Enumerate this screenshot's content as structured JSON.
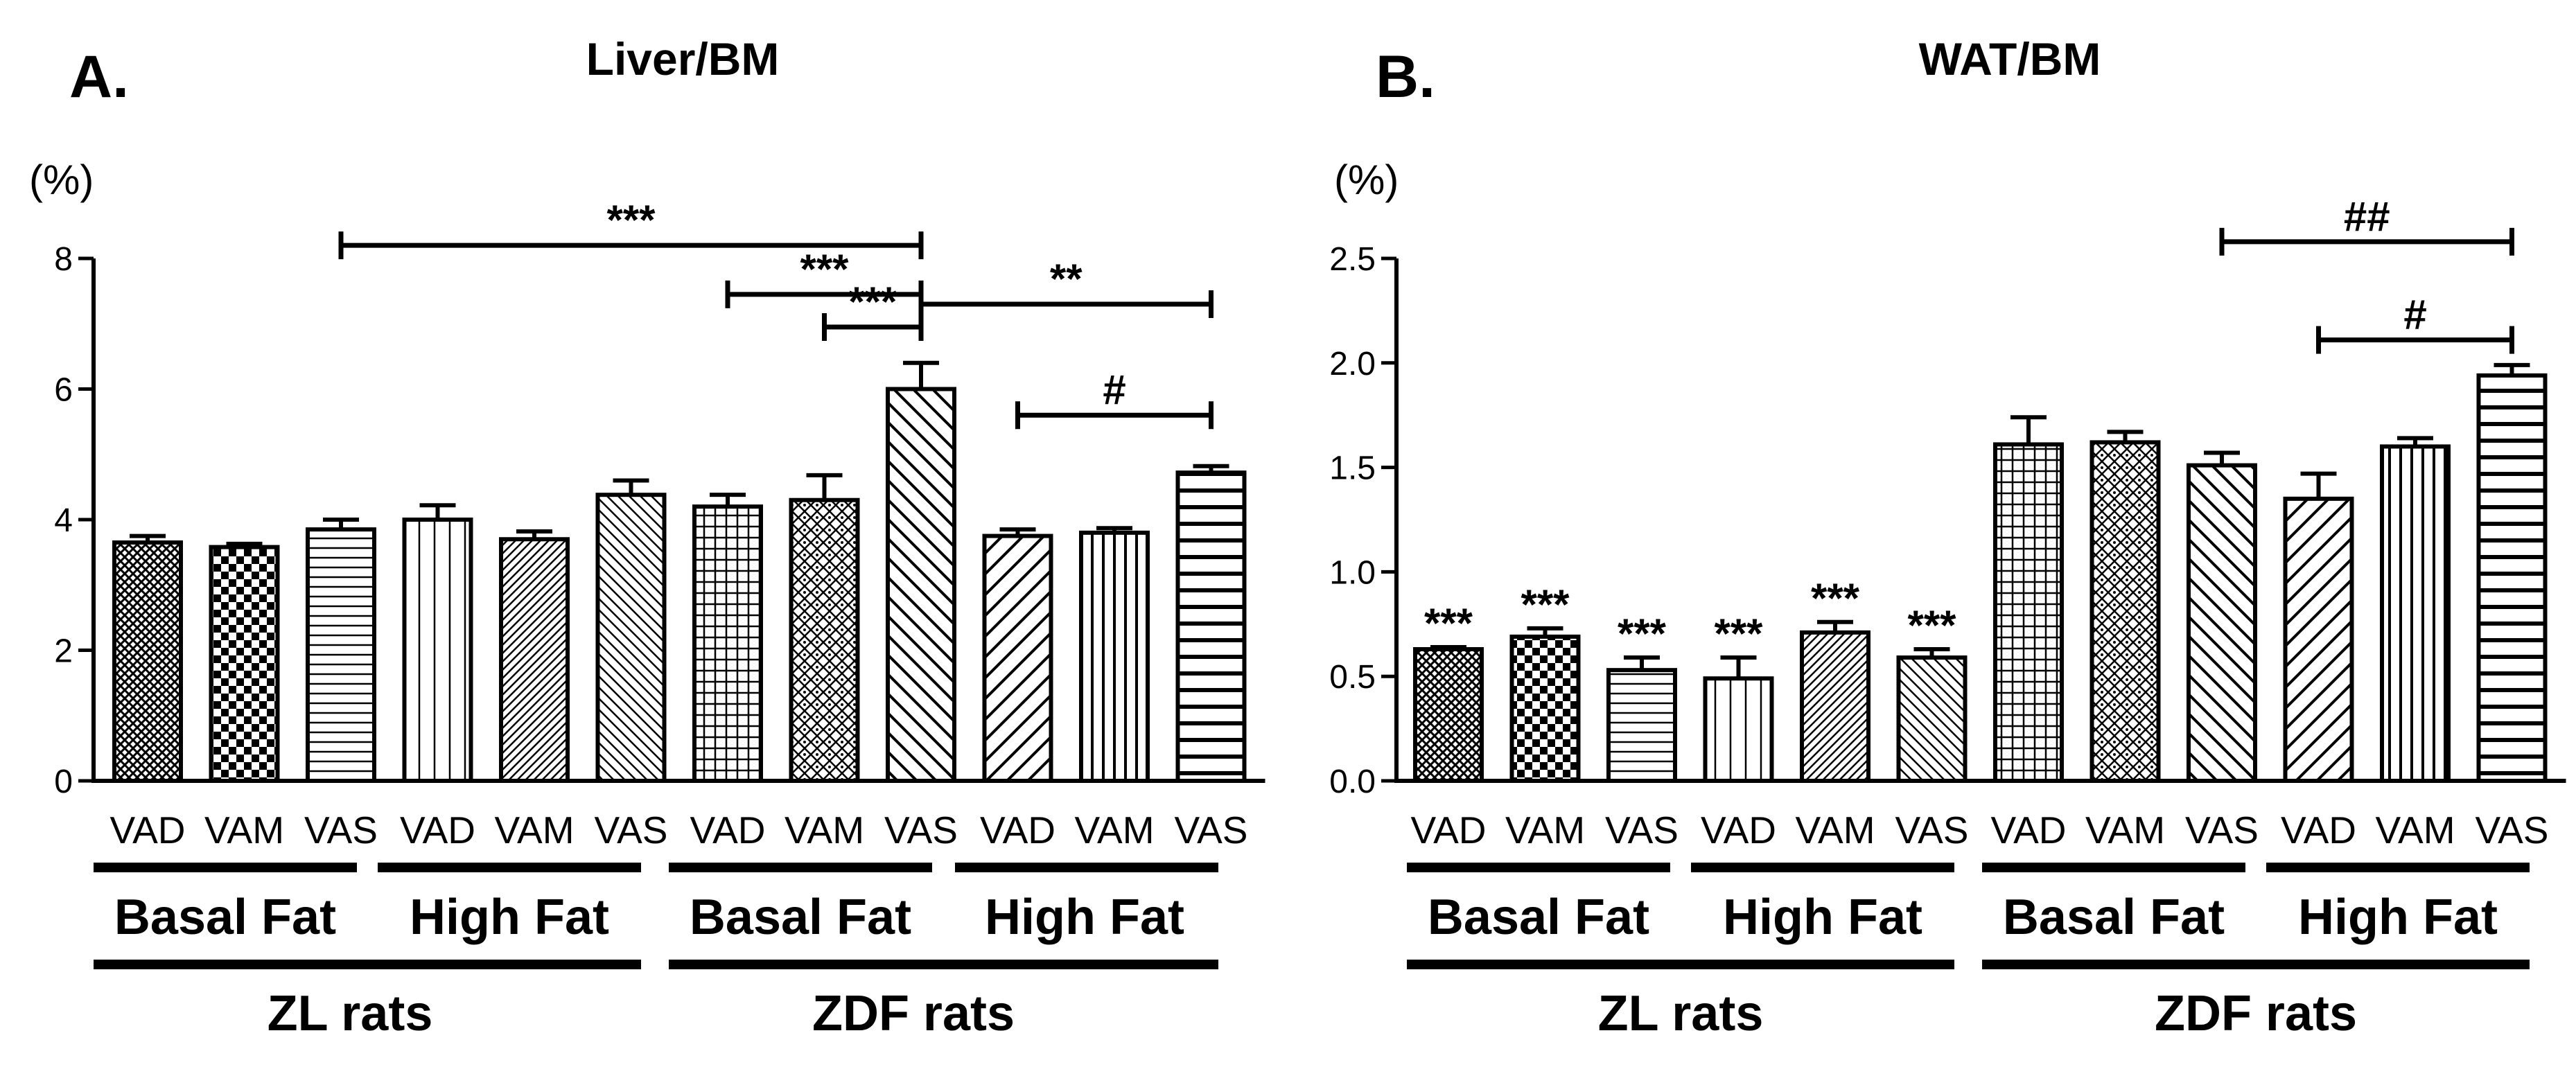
{
  "colors": {
    "ink": "#000000",
    "paper": "#ffffff"
  },
  "chart_data": [
    {
      "type": "bar",
      "panel_label": "A.",
      "title": "Liver/BM",
      "ylabel": "(%)",
      "ylim": [
        0,
        8
      ],
      "yticks": [
        0,
        2,
        4,
        6,
        8
      ],
      "ytick_labels": [
        "0",
        "2",
        "4",
        "6",
        "8"
      ],
      "categories": [
        "VAD",
        "VAM",
        "VAS",
        "VAD",
        "VAM",
        "VAS",
        "VAD",
        "VAM",
        "VAS",
        "VAD",
        "VAM",
        "VAS"
      ],
      "values": [
        3.65,
        3.58,
        3.85,
        4.0,
        3.7,
        4.38,
        4.2,
        4.3,
        6.0,
        3.75,
        3.8,
        4.72
      ],
      "errors": [
        0.1,
        0.05,
        0.15,
        0.22,
        0.12,
        0.22,
        0.18,
        0.38,
        0.4,
        0.1,
        0.07,
        0.1
      ],
      "patterns": [
        "crosshatch",
        "checker",
        "hlines",
        "vlines",
        "diag-fine",
        "diag-back",
        "grid",
        "diamond",
        "diag-back-wide",
        "diag-wide",
        "vlines-wide",
        "hlines-wide"
      ],
      "diet_groups": [
        "Basal Fat",
        "High Fat",
        "Basal Fat",
        "High Fat"
      ],
      "rat_groups": [
        "ZL rats",
        "ZDF rats"
      ],
      "brackets": [
        {
          "from": 2,
          "to": 8,
          "y": 8.2,
          "label": "***"
        },
        {
          "from": 6,
          "to": 8,
          "y": 7.45,
          "label": "***"
        },
        {
          "from": 7,
          "to": 8,
          "y": 6.95,
          "label": "***"
        },
        {
          "from": 8,
          "to": 11,
          "y": 7.3,
          "label": "**"
        },
        {
          "from": 9,
          "to": 11,
          "y": 5.6,
          "label": "#"
        }
      ],
      "bar_marks": []
    },
    {
      "type": "bar",
      "panel_label": "B.",
      "title": "WAT/BM",
      "ylabel": "(%)",
      "ylim": [
        0,
        2.5
      ],
      "yticks": [
        0,
        0.5,
        1.0,
        1.5,
        2.0,
        2.5
      ],
      "ytick_labels": [
        "0.0",
        "0.5",
        "1.0",
        "1.5",
        "2.0",
        "2.5"
      ],
      "categories": [
        "VAD",
        "VAM",
        "VAS",
        "VAD",
        "VAM",
        "VAS",
        "VAD",
        "VAM",
        "VAS",
        "VAD",
        "VAM",
        "VAS"
      ],
      "values": [
        0.63,
        0.69,
        0.53,
        0.49,
        0.71,
        0.59,
        1.61,
        1.62,
        1.51,
        1.35,
        1.6,
        1.94
      ],
      "errors": [
        0.01,
        0.04,
        0.06,
        0.1,
        0.05,
        0.04,
        0.13,
        0.05,
        0.06,
        0.12,
        0.04,
        0.05
      ],
      "patterns": [
        "crosshatch",
        "checker",
        "hlines",
        "vlines",
        "diag-fine",
        "diag-back",
        "grid",
        "diamond",
        "diag-back-wide",
        "diag-wide",
        "vlines-wide",
        "hlines-wide"
      ],
      "diet_groups": [
        "Basal Fat",
        "High Fat",
        "Basal Fat",
        "High Fat"
      ],
      "rat_groups": [
        "ZL rats",
        "ZDF rats"
      ],
      "brackets": [
        {
          "from": 8,
          "to": 11,
          "y": 2.58,
          "label": "##"
        },
        {
          "from": 9,
          "to": 11,
          "y": 2.11,
          "label": "#"
        }
      ],
      "bar_marks": [
        "***",
        "***",
        "***",
        "***",
        "***",
        "***",
        "",
        "",
        "",
        "",
        "",
        ""
      ]
    }
  ]
}
